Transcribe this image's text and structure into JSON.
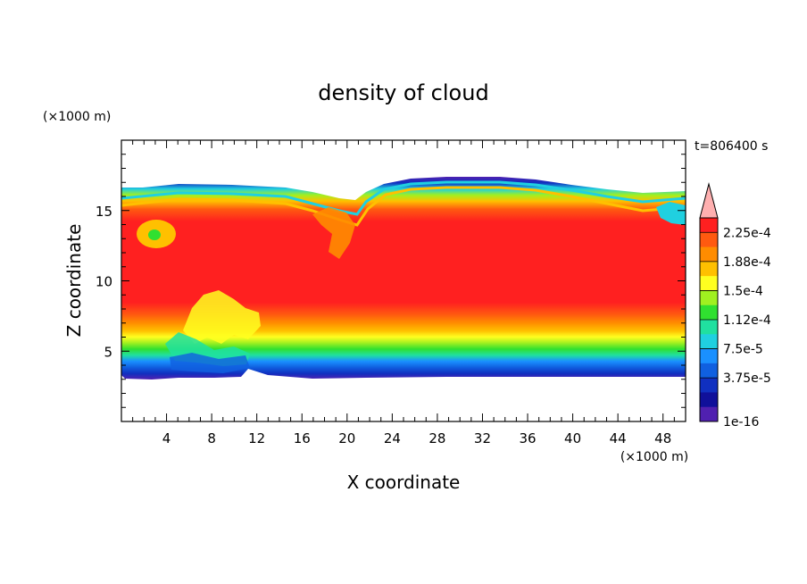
{
  "chart_data": {
    "type": "heatmap",
    "title": "density of cloud",
    "xlabel": "X coordinate",
    "ylabel": "Z coordinate",
    "x_unit": "(×1000 m)",
    "y_unit": "(×1000 m)",
    "time_label": "t=806400 s",
    "xlim": [
      0,
      50
    ],
    "ylim": [
      0,
      20
    ],
    "x_ticks": [
      4,
      8,
      12,
      16,
      20,
      24,
      28,
      32,
      36,
      40,
      44,
      48
    ],
    "y_ticks": [
      5,
      10,
      15
    ],
    "x_tick_labels": [
      "4",
      "8",
      "12",
      "16",
      "20",
      "24",
      "28",
      "32",
      "36",
      "40",
      "44",
      "48"
    ],
    "y_tick_labels": [
      "5",
      "10",
      "15"
    ],
    "colorbar": {
      "labels": [
        "2.25e-4",
        "1.88e-4",
        "1.5e-4",
        "1.12e-4",
        "7.5e-5",
        "3.75e-5",
        "1e-16"
      ],
      "colors": [
        "#ff2020",
        "#ff5a10",
        "#ff8c00",
        "#ffc000",
        "#ffff20",
        "#a0f020",
        "#30e030",
        "#20e0a0",
        "#20d0e0",
        "#1a90ff",
        "#1060e0",
        "#1030c0",
        "#10109a",
        "#5020b0"
      ],
      "extend_color": "#ffb0b0"
    },
    "cloud_layer": {
      "base_km": 3.5,
      "top_km": 16.5,
      "dense_core_range_km": [
        6.5,
        14.5
      ],
      "peak_value": 0.00024
    }
  }
}
